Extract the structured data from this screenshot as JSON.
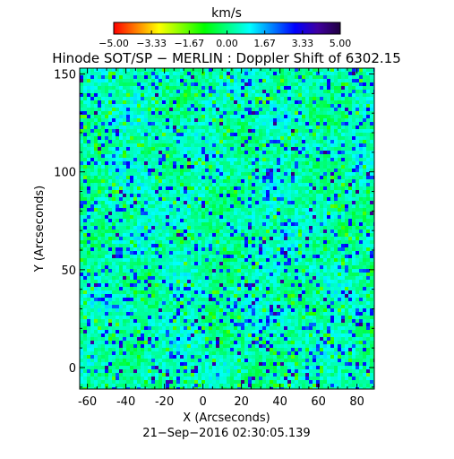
{
  "chart_data": {
    "type": "heatmap",
    "title": "Hinode SOT/SP − MERLIN : Doppler Shift of 6302.15",
    "xlabel": "X (Arcseconds)",
    "ylabel": "Y (Arcseconds)",
    "footer": "21−Sep−2016 02:30:05.139",
    "xlim": [
      -64,
      89
    ],
    "ylim": [
      -11,
      153
    ],
    "xticks": [
      -60,
      -40,
      -20,
      0,
      20,
      40,
      60,
      80
    ],
    "yticks": [
      0,
      50,
      100,
      150
    ],
    "colorbar": {
      "label": "km/s",
      "range": [
        -5.0,
        5.0
      ],
      "ticks": [
        "−5.00",
        "−3.33",
        "−1.67",
        "0.00",
        "1.67",
        "3.33",
        "5.00"
      ],
      "colormap": [
        "#ff0000",
        "#ff8000",
        "#ffff00",
        "#80ff00",
        "#00ff00",
        "#00ff80",
        "#00ffff",
        "#0080ff",
        "#0000ff",
        "#4000a0",
        "#200040"
      ]
    },
    "field_description": "Granulation-like noisy velocity field; values mostly between −1.5 and 1.5 km/s, with scattered blue (≈ +2.5 km/s) and yellow (≈ −1.5 km/s) speckles.",
    "field_typical_range": [
      -1.5,
      2.8
    ]
  }
}
